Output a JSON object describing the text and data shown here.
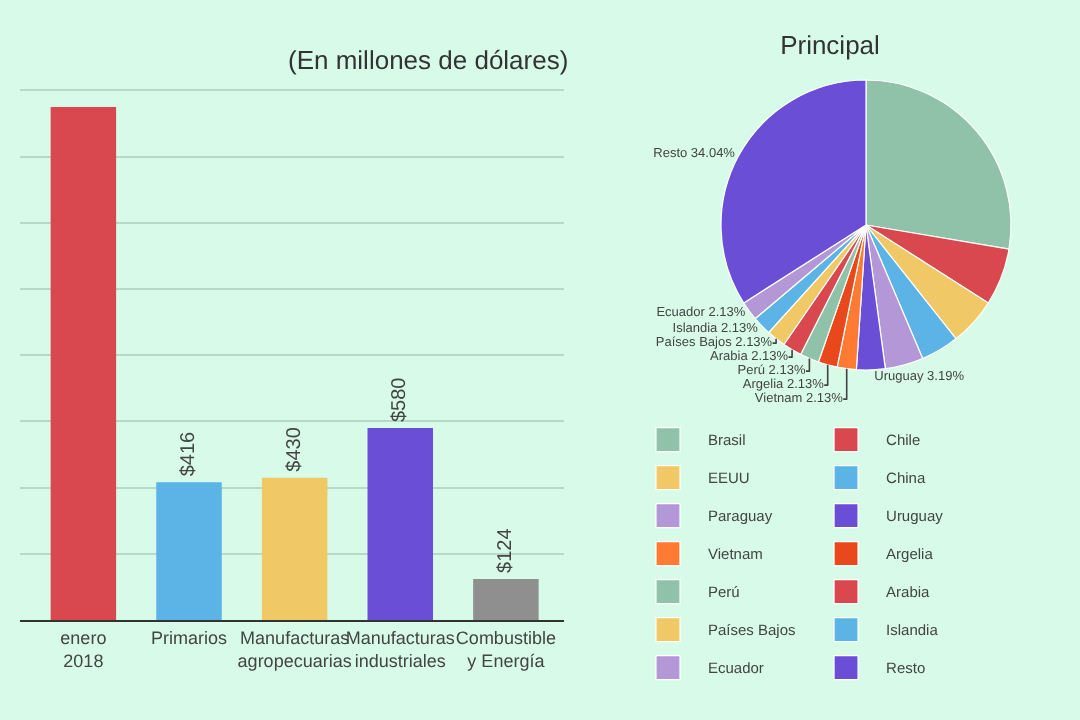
{
  "chart_data": [
    {
      "type": "bar",
      "title": "(En millones de dólares)",
      "categories": [
        "enero 2018",
        "Primarios",
        "Manufacturas agropecuarias",
        "Manufacturas industriales",
        "Combustible y Energía"
      ],
      "values": [
        1550,
        416,
        430,
        580,
        124
      ],
      "value_labels": [
        null,
        "$416",
        "$430",
        "$580",
        "$124"
      ],
      "colors": [
        "#d9484f",
        "#5bb3e6",
        "#f0c865",
        "#6a4fd6",
        "#8f8f8f"
      ],
      "tick_labels": "x",
      "grid": "y"
    },
    {
      "type": "pie",
      "title": "Principal",
      "categories": [
        "Brasil",
        "Chile",
        "EEUU",
        "China",
        "Paraguay",
        "Uruguay",
        "Vietnam",
        "Argelia",
        "Perú",
        "Arabia",
        "Países Bajos",
        "Islandia",
        "Ecuador",
        "Resto"
      ],
      "values": [
        27.66,
        6.38,
        5.32,
        4.26,
        4.26,
        3.19,
        2.13,
        2.13,
        2.13,
        2.13,
        2.13,
        2.13,
        2.13,
        34.04
      ],
      "value_labels": [
        null,
        null,
        null,
        null,
        null,
        "Uruguay 3.19%",
        "Vietnam 2.13%",
        "Argelia 2.13%",
        "Perú 2.13%",
        "Arabia 2.13%",
        "Países Bajos 2.13%",
        "Islandia 2.13%",
        "Ecuador 2.13%",
        "Resto 34.04%"
      ],
      "colors": [
        "#8fc2a8",
        "#d9484f",
        "#f0c865",
        "#5bb3e6",
        "#b497d6",
        "#6a4fd6",
        "#ff7a33",
        "#e8481c",
        "#8fc2a8",
        "#d9484f",
        "#f0c865",
        "#5bb3e6",
        "#b497d6",
        "#6a4fd6"
      ],
      "legend": "bottom"
    }
  ]
}
